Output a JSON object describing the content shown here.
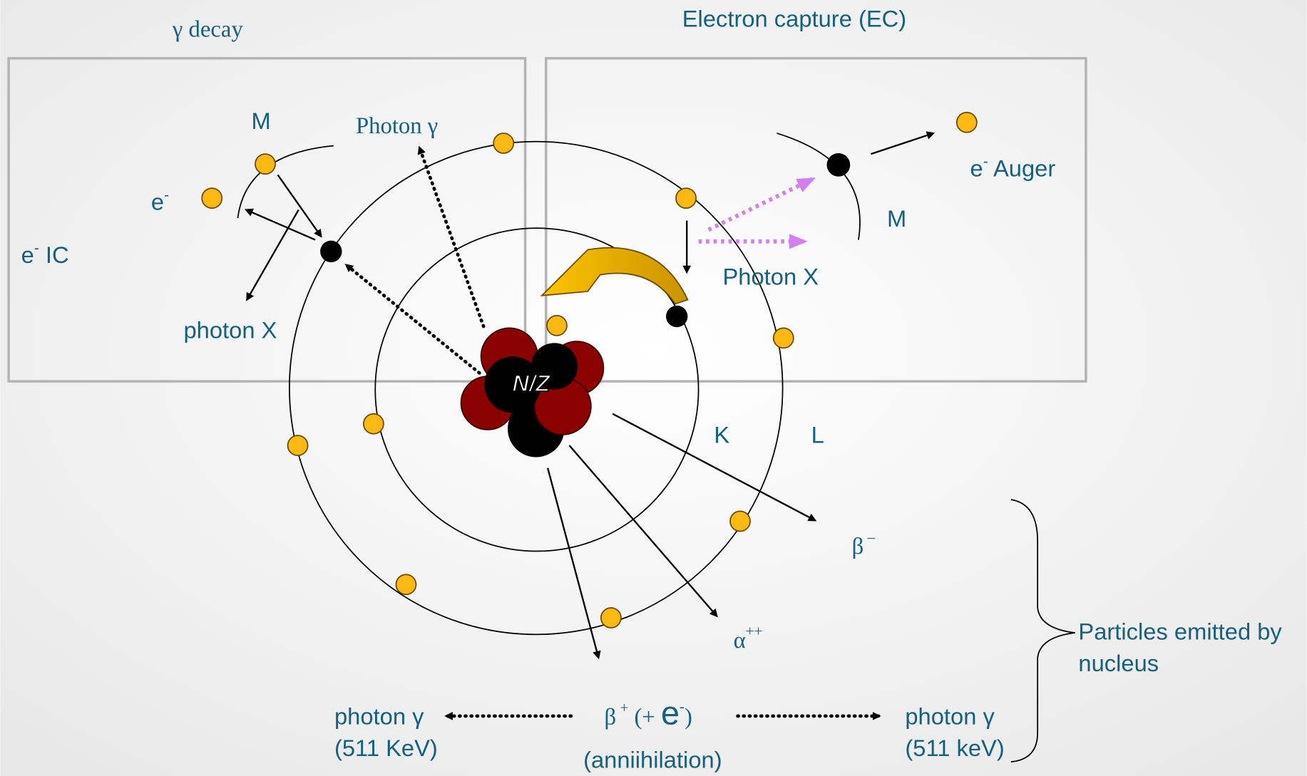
{
  "labels": {
    "gamma_decay": "γ  decay",
    "electron_capture": "Electron capture (EC)",
    "m_left": "M",
    "photon_gamma_top": "Photon γ",
    "e_minus": [
      "e",
      {
        "sup": "-"
      }
    ],
    "e_ic": [
      "e",
      {
        "sup": "-"
      },
      " IC"
    ],
    "photon_x_left": "photon X",
    "nucleus": "N/Z",
    "k_shell": "K",
    "l_shell": "L",
    "m_right": "M",
    "auger": [
      "e",
      {
        "sup": "-"
      },
      " Auger"
    ],
    "photon_x_right": "Photon X",
    "beta_minus": [
      "β",
      {
        "sup": " –"
      }
    ],
    "alpha": [
      "α",
      {
        "sup": "++"
      }
    ],
    "particles": [
      "Particles emitted by",
      "nucleus"
    ],
    "photon_left": [
      "photon γ",
      "(511 KeV)"
    ],
    "beta_plus": [
      "β",
      {
        "sup": " +"
      },
      "  (+ ",
      "e",
      {
        "sup": "-"
      },
      ")"
    ],
    "annihilation": "(anniihilation)",
    "photon_right": [
      "photon γ",
      "(511 keV)"
    ]
  }
}
